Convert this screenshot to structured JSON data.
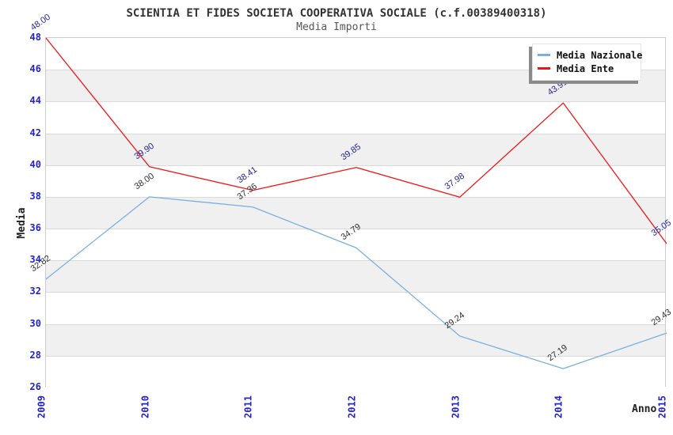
{
  "header": {
    "title": "SCIENTIA ET FIDES SOCIETA COOPERATIVA SOCIALE (c.f.00389400318)",
    "subtitle": "Media Importi"
  },
  "chart_data": {
    "type": "line",
    "title": "SCIENTIA ET FIDES SOCIETA COOPERATIVA SOCIALE (c.f.00389400318)",
    "subtitle": "Media Importi",
    "x": [
      "2009",
      "2010",
      "2011",
      "2012",
      "2013",
      "2014",
      "2015"
    ],
    "xlabel": "Anno",
    "ylabel": "Media",
    "ylim": [
      26,
      48
    ],
    "yticks": [
      26,
      28,
      30,
      32,
      34,
      36,
      38,
      40,
      42,
      44,
      46,
      48
    ],
    "grid": true,
    "alternating_bands": true,
    "legend_position": "top-right",
    "series": [
      {
        "name": "Media Nazionale",
        "color": "#7ab0e0",
        "label_color": "#2e2e2e",
        "values": [
          32.82,
          38.0,
          37.36,
          34.79,
          29.24,
          27.19,
          29.43
        ],
        "point_labels": [
          "32.82",
          "38.00",
          "37.36",
          "34.79",
          "29.24",
          "27.19",
          "29.43"
        ]
      },
      {
        "name": "Media Ente",
        "color": "#ee1515",
        "label_color": "#1f1f8f",
        "values": [
          48.0,
          39.9,
          38.41,
          39.85,
          37.98,
          43.91,
          35.05
        ],
        "point_labels": [
          "48.00",
          "39.90",
          "38.41",
          "39.85",
          "37.98",
          "43.91",
          "35.05"
        ]
      }
    ],
    "style": {
      "axis_text_color": "#2323cc",
      "band_color": "#f0f0f0",
      "grid_color": "#dadada",
      "title_color": "#333333",
      "subtitle_color": "#555555",
      "axis_title_color": "#222222",
      "legend_text_color": "#111111"
    }
  }
}
